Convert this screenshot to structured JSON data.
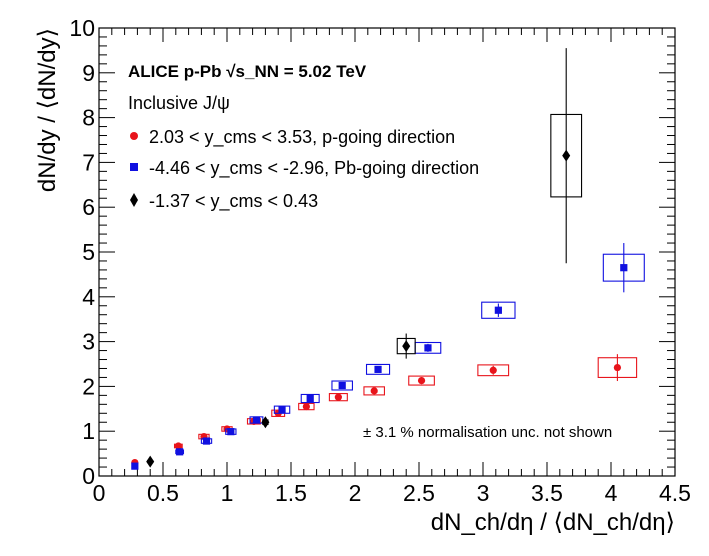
{
  "chart_data": {
    "type": "scatter",
    "xlabel": "dN_ch/dη / ⟨dN_ch/dη⟩",
    "ylabel": "dN/dy / ⟨dN/dy⟩",
    "xlim": [
      0,
      4.5
    ],
    "ylim": [
      0,
      10
    ],
    "x_ticks": [
      "0",
      "0.5",
      "1",
      "1.5",
      "2",
      "2.5",
      "3",
      "3.5",
      "4",
      "4.5"
    ],
    "y_ticks": [
      "0",
      "1",
      "2",
      "3",
      "4",
      "5",
      "6",
      "7",
      "8",
      "9",
      "10"
    ],
    "title": "ALICE p-Pb √s_NN = 5.02 TeV",
    "subtitle": "Inclusive J/ψ",
    "annotation": "± 3.1 % normalisation unc. not shown",
    "series": [
      {
        "name": "2.03 < y_cms < 3.53, p-going direction",
        "color": "#e8141b",
        "marker": "circle",
        "points": [
          {
            "x": 0.28,
            "y": 0.3,
            "err": 0.02,
            "sys_x": 0.02,
            "sys_y": 0.03
          },
          {
            "x": 0.62,
            "y": 0.67,
            "err": 0.02,
            "sys_x": 0.03,
            "sys_y": 0.04
          },
          {
            "x": 0.82,
            "y": 0.88,
            "err": 0.02,
            "sys_x": 0.04,
            "sys_y": 0.05
          },
          {
            "x": 1.0,
            "y": 1.05,
            "err": 0.03,
            "sys_x": 0.04,
            "sys_y": 0.05
          },
          {
            "x": 1.21,
            "y": 1.22,
            "err": 0.03,
            "sys_x": 0.05,
            "sys_y": 0.06
          },
          {
            "x": 1.4,
            "y": 1.4,
            "err": 0.04,
            "sys_x": 0.05,
            "sys_y": 0.07
          },
          {
            "x": 1.62,
            "y": 1.55,
            "err": 0.04,
            "sys_x": 0.06,
            "sys_y": 0.07
          },
          {
            "x": 1.87,
            "y": 1.76,
            "err": 0.05,
            "sys_x": 0.07,
            "sys_y": 0.08
          },
          {
            "x": 2.15,
            "y": 1.9,
            "err": 0.06,
            "sys_x": 0.08,
            "sys_y": 0.09
          },
          {
            "x": 2.52,
            "y": 2.13,
            "err": 0.08,
            "sys_x": 0.1,
            "sys_y": 0.1
          },
          {
            "x": 3.08,
            "y": 2.36,
            "err": 0.1,
            "sys_x": 0.12,
            "sys_y": 0.12
          },
          {
            "x": 4.05,
            "y": 2.42,
            "err": 0.3,
            "sys_x": 0.15,
            "sys_y": 0.22
          }
        ]
      },
      {
        "name": "-4.46 < y_cms < -2.96, Pb-going direction",
        "color": "#1010e0",
        "marker": "square",
        "points": [
          {
            "x": 0.28,
            "y": 0.22,
            "err": 0.02,
            "sys_x": 0.02,
            "sys_y": 0.03
          },
          {
            "x": 0.63,
            "y": 0.54,
            "err": 0.02,
            "sys_x": 0.03,
            "sys_y": 0.04
          },
          {
            "x": 0.84,
            "y": 0.78,
            "err": 0.03,
            "sys_x": 0.04,
            "sys_y": 0.05
          },
          {
            "x": 1.03,
            "y": 0.99,
            "err": 0.03,
            "sys_x": 0.04,
            "sys_y": 0.06
          },
          {
            "x": 1.23,
            "y": 1.25,
            "err": 0.04,
            "sys_x": 0.05,
            "sys_y": 0.07
          },
          {
            "x": 1.43,
            "y": 1.48,
            "err": 0.04,
            "sys_x": 0.06,
            "sys_y": 0.08
          },
          {
            "x": 1.65,
            "y": 1.73,
            "err": 0.05,
            "sys_x": 0.07,
            "sys_y": 0.09
          },
          {
            "x": 1.9,
            "y": 2.02,
            "err": 0.06,
            "sys_x": 0.08,
            "sys_y": 0.1
          },
          {
            "x": 2.18,
            "y": 2.38,
            "err": 0.07,
            "sys_x": 0.09,
            "sys_y": 0.11
          },
          {
            "x": 2.57,
            "y": 2.86,
            "err": 0.09,
            "sys_x": 0.1,
            "sys_y": 0.12
          },
          {
            "x": 3.12,
            "y": 3.7,
            "err": 0.15,
            "sys_x": 0.13,
            "sys_y": 0.18
          },
          {
            "x": 4.1,
            "y": 4.65,
            "err": 0.55,
            "sys_x": 0.16,
            "sys_y": 0.3
          }
        ]
      },
      {
        "name": "-1.37 < y_cms < 0.43",
        "color": "#000000",
        "marker": "diamond",
        "points": [
          {
            "x": 0.4,
            "y": 0.32,
            "err": 0.04,
            "sys_x": 0.02,
            "sys_y": 0.02
          },
          {
            "x": 1.3,
            "y": 1.2,
            "err": 0.08,
            "sys_x": 0.02,
            "sys_y": 0.05
          },
          {
            "x": 2.4,
            "y": 2.9,
            "err": 0.28,
            "sys_x": 0.07,
            "sys_y": 0.17
          },
          {
            "x": 3.65,
            "y": 7.15,
            "err": 2.4,
            "sys_x": 0.12,
            "sys_y": 0.92
          }
        ]
      }
    ]
  }
}
